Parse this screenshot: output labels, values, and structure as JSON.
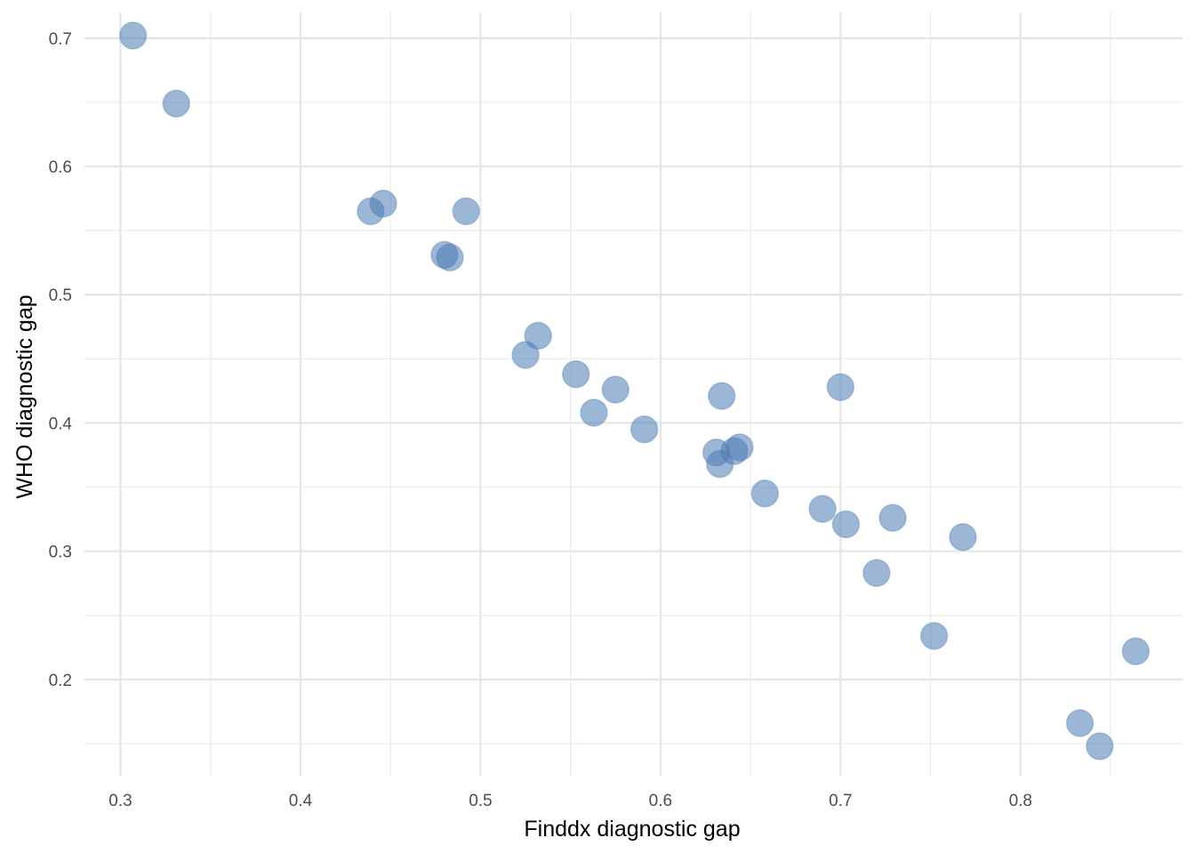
{
  "chart_data": {
    "type": "scatter",
    "xlabel": "Finddx diagnostic gap",
    "ylabel": "WHO diagnostic gap",
    "xlim": [
      0.28,
      0.89
    ],
    "ylim": [
      0.125,
      0.72
    ],
    "x_ticks": [
      0.3,
      0.4,
      0.5,
      0.6,
      0.7,
      0.8
    ],
    "y_ticks": [
      0.2,
      0.3,
      0.4,
      0.5,
      0.6,
      0.7
    ],
    "x_minor_ticks": [
      0.35,
      0.45,
      0.55,
      0.65,
      0.75,
      0.85
    ],
    "y_minor_ticks": [
      0.15,
      0.25,
      0.35,
      0.45,
      0.55,
      0.65
    ],
    "grid": true,
    "point_color": "#4a7ab5",
    "points": [
      {
        "x": 0.307,
        "y": 0.702
      },
      {
        "x": 0.331,
        "y": 0.649
      },
      {
        "x": 0.439,
        "y": 0.565
      },
      {
        "x": 0.446,
        "y": 0.571
      },
      {
        "x": 0.492,
        "y": 0.565
      },
      {
        "x": 0.48,
        "y": 0.531
      },
      {
        "x": 0.483,
        "y": 0.529
      },
      {
        "x": 0.532,
        "y": 0.468
      },
      {
        "x": 0.525,
        "y": 0.453
      },
      {
        "x": 0.553,
        "y": 0.438
      },
      {
        "x": 0.575,
        "y": 0.426
      },
      {
        "x": 0.563,
        "y": 0.408
      },
      {
        "x": 0.591,
        "y": 0.395
      },
      {
        "x": 0.634,
        "y": 0.421
      },
      {
        "x": 0.7,
        "y": 0.428
      },
      {
        "x": 0.631,
        "y": 0.377
      },
      {
        "x": 0.633,
        "y": 0.368
      },
      {
        "x": 0.641,
        "y": 0.378
      },
      {
        "x": 0.644,
        "y": 0.381
      },
      {
        "x": 0.658,
        "y": 0.345
      },
      {
        "x": 0.69,
        "y": 0.333
      },
      {
        "x": 0.703,
        "y": 0.321
      },
      {
        "x": 0.729,
        "y": 0.326
      },
      {
        "x": 0.768,
        "y": 0.311
      },
      {
        "x": 0.72,
        "y": 0.283
      },
      {
        "x": 0.752,
        "y": 0.234
      },
      {
        "x": 0.864,
        "y": 0.222
      },
      {
        "x": 0.833,
        "y": 0.166
      },
      {
        "x": 0.844,
        "y": 0.148
      }
    ]
  }
}
